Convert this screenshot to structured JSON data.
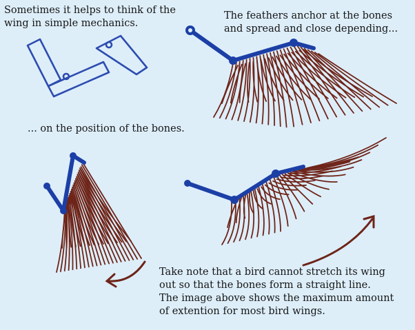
{
  "captions": {
    "intro": [
      "Sometimes it helps to think of the",
      "wing in simple mechanics."
    ],
    "feathers": [
      "The feathers anchor at the bones",
      "and spread and close depending..."
    ],
    "position": "... on the position of the bones.",
    "note": [
      "Take note that a bird cannot stretch its wing",
      "out so that the bones form a straight line.",
      "The image above shows the maximum amount",
      "of extention for most bird wings."
    ]
  },
  "colors": {
    "background": "#ddeef9",
    "bone": "#1c3fa6",
    "feather": "#6e2418",
    "mechanics": "#2d4cb0"
  }
}
